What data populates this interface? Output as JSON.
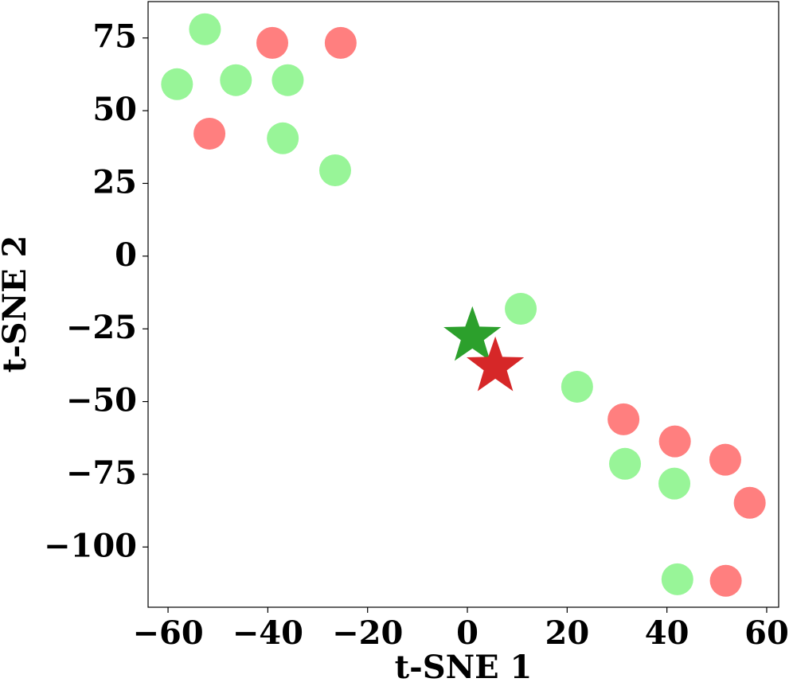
{
  "chart_data": {
    "type": "scatter",
    "xlabel": "t-SNE 1",
    "ylabel": "t-SNE 2",
    "xlim": [
      -64,
      62.4
    ],
    "ylim": [
      -120.7,
      87.5
    ],
    "xticks": [
      {
        "value": -60,
        "label": "−60"
      },
      {
        "value": -40,
        "label": "−40"
      },
      {
        "value": -20,
        "label": "−20"
      },
      0,
      20,
      40,
      60
    ],
    "yticks": [
      {
        "value": -100,
        "label": "−100"
      },
      {
        "value": -75,
        "label": "−75"
      },
      {
        "value": -50,
        "label": "−50"
      },
      {
        "value": -25,
        "label": "−25"
      },
      0,
      25,
      50,
      75
    ],
    "grid": false,
    "series": [
      {
        "color": "#98f598",
        "marker": "circle",
        "x": [
          -52.6,
          -58.2,
          -46.4,
          -36.0,
          -37.0,
          -26.5,
          10.7,
          22.0,
          31.6,
          41.5,
          42.1
        ],
        "y": [
          78,
          59.1,
          60.5,
          60.5,
          40.5,
          29.5,
          -18.1,
          -44.9,
          -71.4,
          -78.2,
          -111.1
        ]
      },
      {
        "color": "#ff7f7f",
        "marker": "circle",
        "x": [
          -39.1,
          -25.4,
          -51.7,
          31.3,
          41.6,
          51.7,
          56.6,
          51.8
        ],
        "y": [
          73.3,
          73.3,
          42.1,
          -56.1,
          -63.7,
          -70.0,
          -84.8,
          -111.6
        ]
      },
      {
        "color": "#2ca02c",
        "marker": "star",
        "x": [
          1.0
        ],
        "y": [
          -27.6
        ]
      },
      {
        "color": "#d62728",
        "marker": "star",
        "x": [
          5.6
        ],
        "y": [
          -38.0
        ]
      }
    ]
  }
}
